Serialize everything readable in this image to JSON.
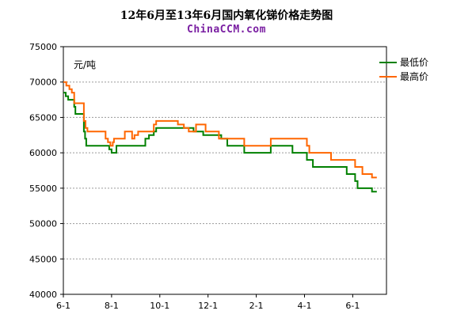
{
  "chart_data": {
    "type": "line",
    "title": "12年6月至13年6月国内氧化锑价格走势图",
    "subtitle": "ChinaCCM.com",
    "ylabel": "元/吨",
    "xlabel": "",
    "ylim": [
      40000,
      75000
    ],
    "yticks": [
      40000,
      45000,
      50000,
      55000,
      60000,
      65000,
      70000,
      75000
    ],
    "xlim": [
      0,
      13.4
    ],
    "xticks": [
      {
        "x": 0,
        "label": "6-1"
      },
      {
        "x": 2,
        "label": "8-1"
      },
      {
        "x": 4,
        "label": "10-1"
      },
      {
        "x": 6,
        "label": "12-1"
      },
      {
        "x": 8,
        "label": "2-1"
      },
      {
        "x": 10,
        "label": "4-1"
      },
      {
        "x": 12,
        "label": "6-1"
      }
    ],
    "grid": true,
    "legend_position": "top-right",
    "series": [
      {
        "name": "最低价",
        "color": "#008000",
        "points": [
          [
            0.0,
            68500
          ],
          [
            0.1,
            68500
          ],
          [
            0.1,
            68000
          ],
          [
            0.2,
            68000
          ],
          [
            0.2,
            67500
          ],
          [
            0.45,
            67500
          ],
          [
            0.45,
            66500
          ],
          [
            0.5,
            66500
          ],
          [
            0.5,
            65500
          ],
          [
            0.85,
            65500
          ],
          [
            0.85,
            63000
          ],
          [
            0.9,
            63000
          ],
          [
            0.9,
            62000
          ],
          [
            0.95,
            62000
          ],
          [
            0.95,
            61000
          ],
          [
            1.9,
            61000
          ],
          [
            1.9,
            60500
          ],
          [
            2.0,
            60500
          ],
          [
            2.0,
            60000
          ],
          [
            2.2,
            60000
          ],
          [
            2.2,
            61000
          ],
          [
            3.4,
            61000
          ],
          [
            3.4,
            62000
          ],
          [
            3.55,
            62000
          ],
          [
            3.55,
            62500
          ],
          [
            3.75,
            62500
          ],
          [
            3.75,
            63000
          ],
          [
            3.85,
            63000
          ],
          [
            3.85,
            63500
          ],
          [
            5.4,
            63500
          ],
          [
            5.4,
            63000
          ],
          [
            5.8,
            63000
          ],
          [
            5.8,
            62500
          ],
          [
            6.55,
            62500
          ],
          [
            6.55,
            62000
          ],
          [
            6.8,
            62000
          ],
          [
            6.8,
            61000
          ],
          [
            7.5,
            61000
          ],
          [
            7.5,
            60000
          ],
          [
            8.6,
            60000
          ],
          [
            8.6,
            61000
          ],
          [
            9.5,
            61000
          ],
          [
            9.5,
            60000
          ],
          [
            10.1,
            60000
          ],
          [
            10.1,
            59000
          ],
          [
            10.35,
            59000
          ],
          [
            10.35,
            58000
          ],
          [
            11.75,
            58000
          ],
          [
            11.75,
            57000
          ],
          [
            12.1,
            57000
          ],
          [
            12.1,
            56000
          ],
          [
            12.2,
            56000
          ],
          [
            12.2,
            55000
          ],
          [
            12.8,
            55000
          ],
          [
            12.8,
            54500
          ],
          [
            13.0,
            54500
          ]
        ]
      },
      {
        "name": "最高价",
        "color": "#ff6600",
        "points": [
          [
            0.0,
            70000
          ],
          [
            0.12,
            70000
          ],
          [
            0.12,
            69500
          ],
          [
            0.25,
            69500
          ],
          [
            0.25,
            69000
          ],
          [
            0.35,
            69000
          ],
          [
            0.35,
            68500
          ],
          [
            0.45,
            68500
          ],
          [
            0.45,
            67000
          ],
          [
            0.85,
            67000
          ],
          [
            0.85,
            64500
          ],
          [
            0.92,
            64500
          ],
          [
            0.92,
            63500
          ],
          [
            1.0,
            63500
          ],
          [
            1.0,
            63000
          ],
          [
            1.75,
            63000
          ],
          [
            1.75,
            62000
          ],
          [
            1.85,
            62000
          ],
          [
            1.85,
            61500
          ],
          [
            1.95,
            61500
          ],
          [
            1.95,
            61000
          ],
          [
            2.05,
            61000
          ],
          [
            2.05,
            61500
          ],
          [
            2.1,
            61500
          ],
          [
            2.1,
            62000
          ],
          [
            2.55,
            62000
          ],
          [
            2.55,
            63000
          ],
          [
            2.85,
            63000
          ],
          [
            2.85,
            62000
          ],
          [
            2.95,
            62000
          ],
          [
            2.95,
            62500
          ],
          [
            3.1,
            62500
          ],
          [
            3.1,
            63000
          ],
          [
            3.75,
            63000
          ],
          [
            3.75,
            64000
          ],
          [
            3.85,
            64000
          ],
          [
            3.85,
            64500
          ],
          [
            4.75,
            64500
          ],
          [
            4.75,
            64000
          ],
          [
            5.0,
            64000
          ],
          [
            5.0,
            63500
          ],
          [
            5.2,
            63500
          ],
          [
            5.2,
            63000
          ],
          [
            5.5,
            63000
          ],
          [
            5.5,
            64000
          ],
          [
            5.9,
            64000
          ],
          [
            5.9,
            63000
          ],
          [
            6.45,
            63000
          ],
          [
            6.45,
            62000
          ],
          [
            7.5,
            62000
          ],
          [
            7.5,
            61000
          ],
          [
            8.6,
            61000
          ],
          [
            8.6,
            62000
          ],
          [
            10.1,
            62000
          ],
          [
            10.1,
            61000
          ],
          [
            10.2,
            61000
          ],
          [
            10.2,
            60000
          ],
          [
            11.1,
            60000
          ],
          [
            11.1,
            59000
          ],
          [
            12.1,
            59000
          ],
          [
            12.1,
            58000
          ],
          [
            12.4,
            58000
          ],
          [
            12.4,
            57000
          ],
          [
            12.8,
            57000
          ],
          [
            12.8,
            56500
          ],
          [
            13.0,
            56500
          ]
        ]
      }
    ]
  }
}
